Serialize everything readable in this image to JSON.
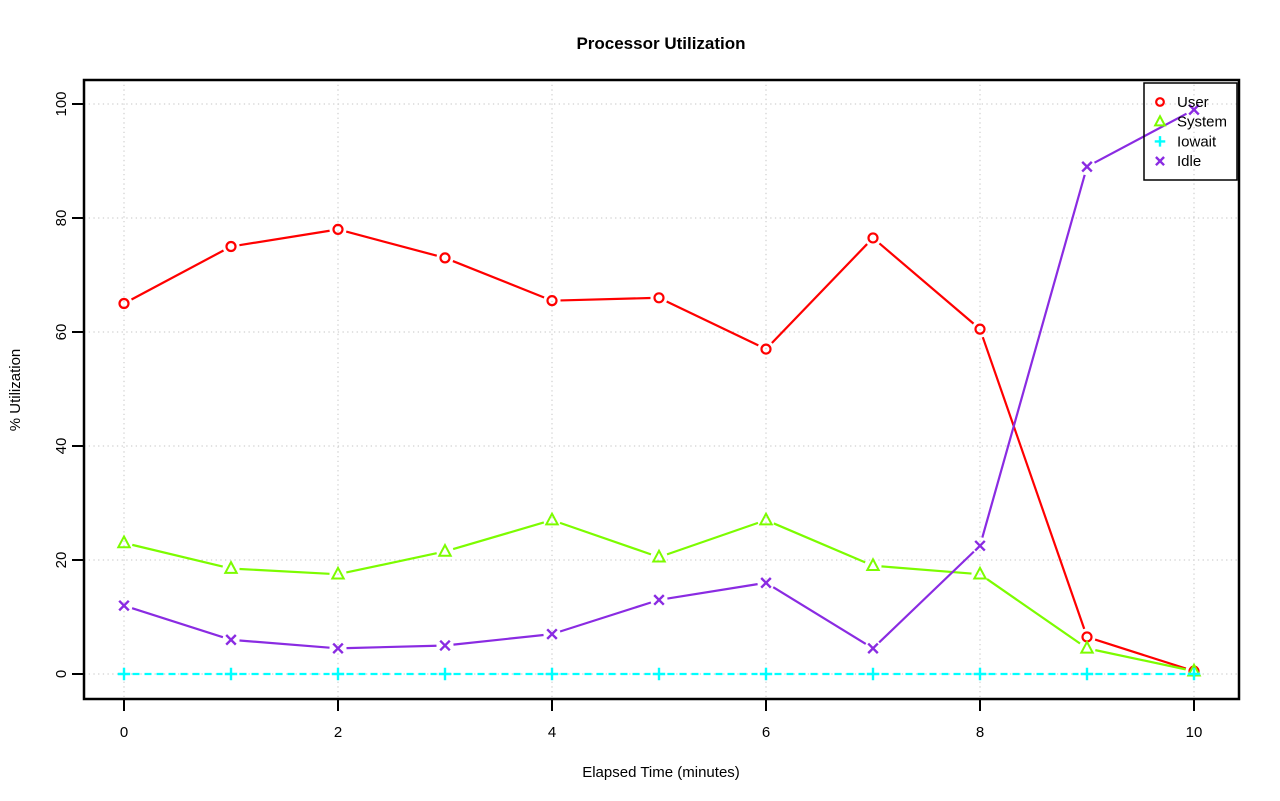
{
  "chart_data": {
    "type": "line",
    "title": "Processor Utilization",
    "xlabel": "Elapsed Time (minutes)",
    "ylabel": "% Utilization",
    "x": [
      0,
      1,
      2,
      3,
      4,
      5,
      6,
      7,
      8,
      9,
      10
    ],
    "xlim": [
      0,
      10
    ],
    "ylim": [
      0,
      100
    ],
    "x_ticks": [
      0,
      2,
      4,
      6,
      8,
      10
    ],
    "y_ticks": [
      0,
      20,
      40,
      60,
      80,
      100
    ],
    "grid": "dotted-gray-at-ticks",
    "grid_color": "#c4c4c4",
    "axis_color": "#000000",
    "legend_position": "top-right",
    "series": [
      {
        "name": "User",
        "color": "#ff0000",
        "marker": "circle",
        "linestyle": "solid",
        "values": [
          65,
          75,
          78,
          73,
          65.5,
          66,
          57,
          76.5,
          60.5,
          6.5,
          0.5
        ]
      },
      {
        "name": "System",
        "color": "#7cfc00",
        "marker": "triangle",
        "linestyle": "solid",
        "values": [
          23,
          18.5,
          17.5,
          21.5,
          27,
          20.5,
          27,
          19,
          17.5,
          4.5,
          0.5
        ]
      },
      {
        "name": "Iowait",
        "color": "#00ffff",
        "marker": "plus",
        "linestyle": "dashed",
        "values": [
          0,
          0,
          0,
          0,
          0,
          0,
          0,
          0,
          0,
          0,
          0
        ]
      },
      {
        "name": "Idle",
        "color": "#8a2be2",
        "marker": "x",
        "linestyle": "solid",
        "values": [
          12,
          6,
          4.5,
          5,
          7,
          13,
          16,
          4.5,
          22.5,
          89,
          99
        ]
      }
    ]
  }
}
